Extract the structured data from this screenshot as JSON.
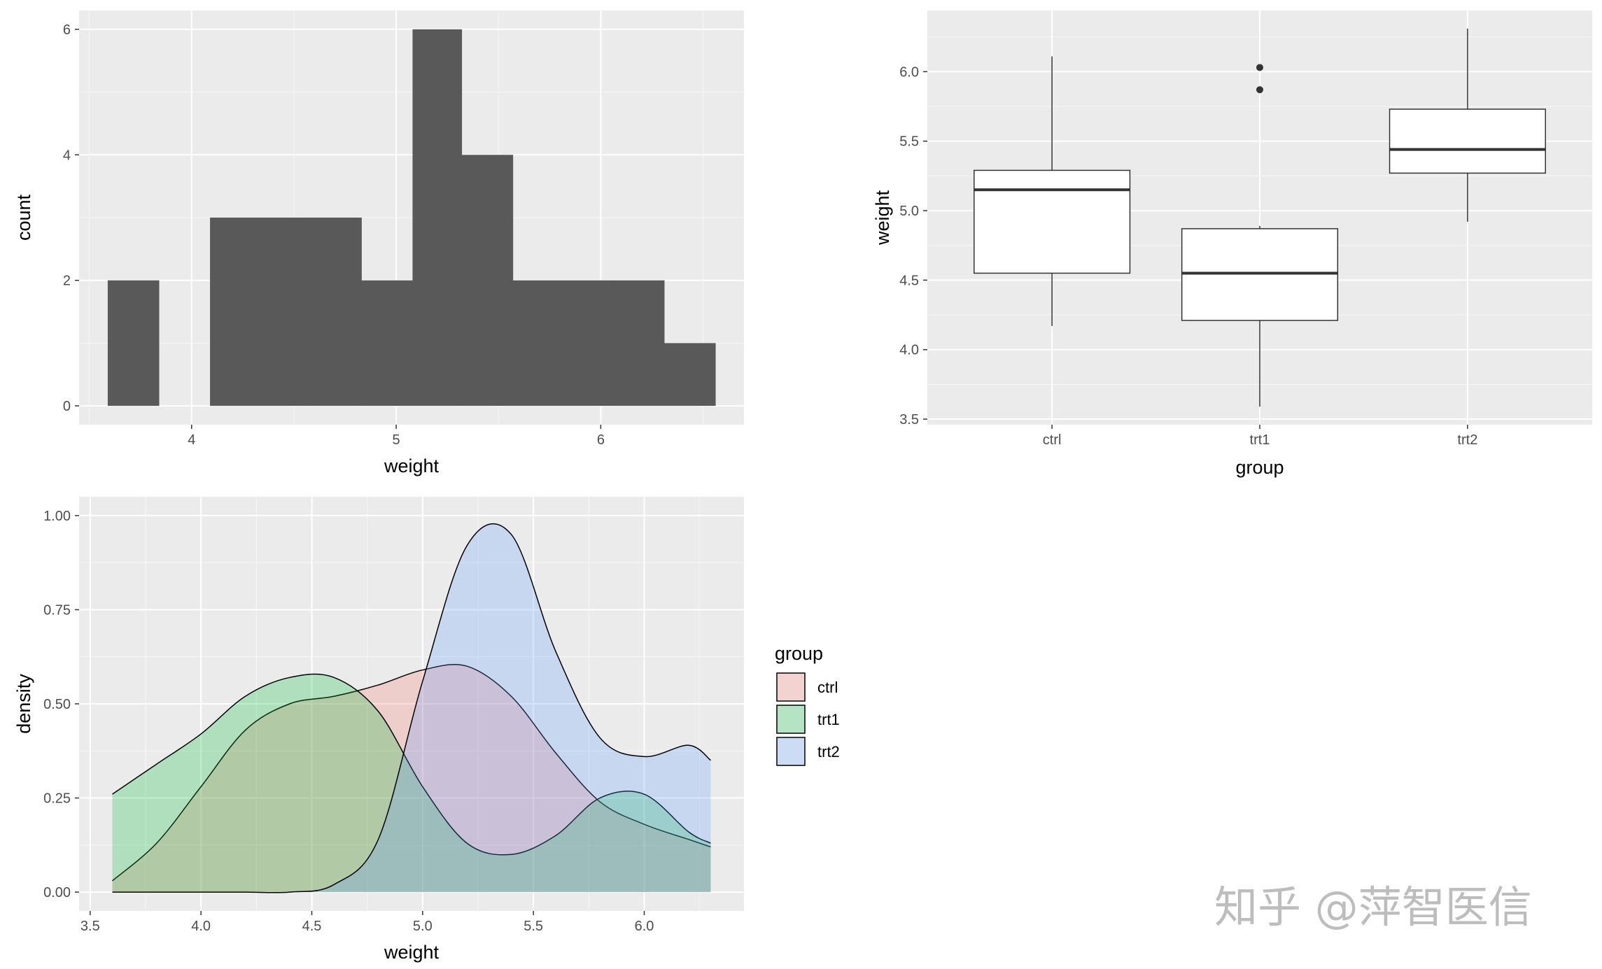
{
  "chart_data": [
    {
      "type": "histogram",
      "xlabel": "weight",
      "ylabel": "count",
      "xlim": [
        3.45,
        6.7
      ],
      "ylim": [
        -0.3,
        6.3
      ],
      "x_ticks": [
        4,
        5,
        6
      ],
      "y_ticks": [
        0,
        2,
        4,
        6
      ],
      "grid": true,
      "bins": [
        {
          "x0": 3.59,
          "x1": 3.84,
          "count": 2
        },
        {
          "x0": 3.84,
          "x1": 4.09,
          "count": 0
        },
        {
          "x0": 4.09,
          "x1": 4.33,
          "count": 3
        },
        {
          "x0": 4.33,
          "x1": 4.58,
          "count": 3
        },
        {
          "x0": 4.58,
          "x1": 4.83,
          "count": 3
        },
        {
          "x0": 4.83,
          "x1": 5.08,
          "count": 2
        },
        {
          "x0": 5.08,
          "x1": 5.32,
          "count": 6
        },
        {
          "x0": 5.32,
          "x1": 5.57,
          "count": 4
        },
        {
          "x0": 5.57,
          "x1": 5.82,
          "count": 2
        },
        {
          "x0": 5.82,
          "x1": 6.06,
          "count": 2
        },
        {
          "x0": 6.06,
          "x1": 6.31,
          "count": 2
        },
        {
          "x0": 6.31,
          "x1": 6.56,
          "count": 1
        }
      ],
      "bar_color": "#595959"
    },
    {
      "type": "boxplot",
      "xlabel": "group",
      "ylabel": "weight",
      "categories": [
        "ctrl",
        "trt1",
        "trt2"
      ],
      "ylim": [
        3.46,
        6.44
      ],
      "y_ticks": [
        "3.5",
        "4.0",
        "4.5",
        "5.0",
        "5.5",
        "6.0"
      ],
      "grid": true,
      "boxes": [
        {
          "name": "ctrl",
          "min": 4.17,
          "q1": 4.55,
          "median": 5.15,
          "q3": 5.29,
          "max": 6.11,
          "outliers": []
        },
        {
          "name": "trt1",
          "min": 3.59,
          "q1": 4.21,
          "median": 4.55,
          "q3": 4.87,
          "max": 4.89,
          "outliers": [
            5.87,
            6.03
          ]
        },
        {
          "name": "trt2",
          "min": 4.92,
          "q1": 5.27,
          "median": 5.44,
          "q3": 5.73,
          "max": 6.31,
          "outliers": []
        }
      ]
    },
    {
      "type": "area",
      "xlabel": "weight",
      "ylabel": "density",
      "xlim": [
        3.45,
        6.45
      ],
      "ylim": [
        -0.05,
        1.05
      ],
      "x_ticks": [
        "3.5",
        "4.0",
        "4.5",
        "5.0",
        "5.5",
        "6.0"
      ],
      "y_ticks": [
        "0.00",
        "0.25",
        "0.50",
        "0.75",
        "1.00"
      ],
      "grid": true,
      "legend": {
        "title": "group",
        "position": "right"
      },
      "x": [
        3.6,
        3.8,
        4.0,
        4.2,
        4.4,
        4.6,
        4.8,
        5.0,
        5.2,
        5.4,
        5.6,
        5.8,
        6.0,
        6.2,
        6.3
      ],
      "series": [
        {
          "name": "ctrl",
          "color": "#F8766D",
          "values": [
            0.03,
            0.13,
            0.28,
            0.43,
            0.5,
            0.52,
            0.55,
            0.59,
            0.6,
            0.52,
            0.37,
            0.24,
            0.18,
            0.14,
            0.12
          ]
        },
        {
          "name": "trt1",
          "color": "#00BA38",
          "values": [
            0.26,
            0.34,
            0.42,
            0.52,
            0.57,
            0.57,
            0.48,
            0.28,
            0.13,
            0.1,
            0.15,
            0.25,
            0.26,
            0.16,
            0.13
          ]
        },
        {
          "name": "trt2",
          "color": "#619CFF",
          "values": [
            0.0,
            0.0,
            0.0,
            0.0,
            0.0,
            0.02,
            0.14,
            0.56,
            0.92,
            0.95,
            0.64,
            0.41,
            0.36,
            0.39,
            0.35
          ]
        }
      ]
    }
  ],
  "watermark": "知乎 @萍智医信"
}
